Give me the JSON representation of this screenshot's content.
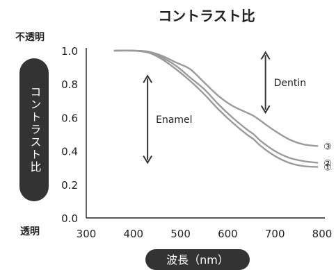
{
  "chart_data": {
    "type": "line",
    "title": "コントラスト比",
    "ylabel": "コントラスト比",
    "xlabel": "波長（nm）",
    "y_top_label": "不透明",
    "y_bottom_label": "透明",
    "xlim": [
      300,
      800
    ],
    "ylim": [
      0.0,
      1.0
    ],
    "x_ticks": [
      300,
      400,
      500,
      600,
      700,
      800
    ],
    "x_tick_labels": [
      "300",
      "400",
      "500",
      "600",
      "700",
      "800"
    ],
    "y_ticks": [
      0.0,
      0.2,
      0.4,
      0.6,
      0.8,
      1.0
    ],
    "y_tick_labels": [
      "0.0",
      "0.2",
      "0.4",
      "0.6",
      "0.8",
      "1.0"
    ],
    "grid": false,
    "series": [
      {
        "name": "①",
        "color": "#9a9a9a",
        "x": [
          360,
          400,
          430,
          460,
          490,
          520,
          550,
          580,
          610,
          640,
          655,
          670,
          700,
          730,
          760,
          790
        ],
        "y": [
          1.0,
          1.0,
          0.99,
          0.95,
          0.89,
          0.82,
          0.74,
          0.65,
          0.57,
          0.5,
          0.47,
          0.43,
          0.37,
          0.33,
          0.31,
          0.305
        ]
      },
      {
        "name": "②",
        "color": "#9a9a9a",
        "x": [
          360,
          400,
          430,
          460,
          490,
          520,
          550,
          580,
          610,
          640,
          655,
          670,
          700,
          730,
          760,
          790
        ],
        "y": [
          1.0,
          1.0,
          0.99,
          0.96,
          0.91,
          0.84,
          0.77,
          0.68,
          0.6,
          0.53,
          0.5,
          0.46,
          0.4,
          0.36,
          0.34,
          0.33
        ]
      },
      {
        "name": "③",
        "color": "#9a9a9a",
        "x": [
          360,
          400,
          430,
          460,
          490,
          520,
          550,
          580,
          610,
          640,
          655,
          670,
          700,
          730,
          760,
          790
        ],
        "y": [
          1.0,
          1.0,
          0.995,
          0.97,
          0.93,
          0.89,
          0.81,
          0.73,
          0.67,
          0.63,
          0.61,
          0.58,
          0.52,
          0.47,
          0.44,
          0.43
        ]
      }
    ],
    "annotations": [
      {
        "text": "Enamel",
        "arrow_x": 430,
        "arrow_y": [
          0.85,
          0.33
        ]
      },
      {
        "text": "Dentin",
        "arrow_x": 680,
        "arrow_y": [
          0.99,
          0.63
        ]
      }
    ]
  }
}
